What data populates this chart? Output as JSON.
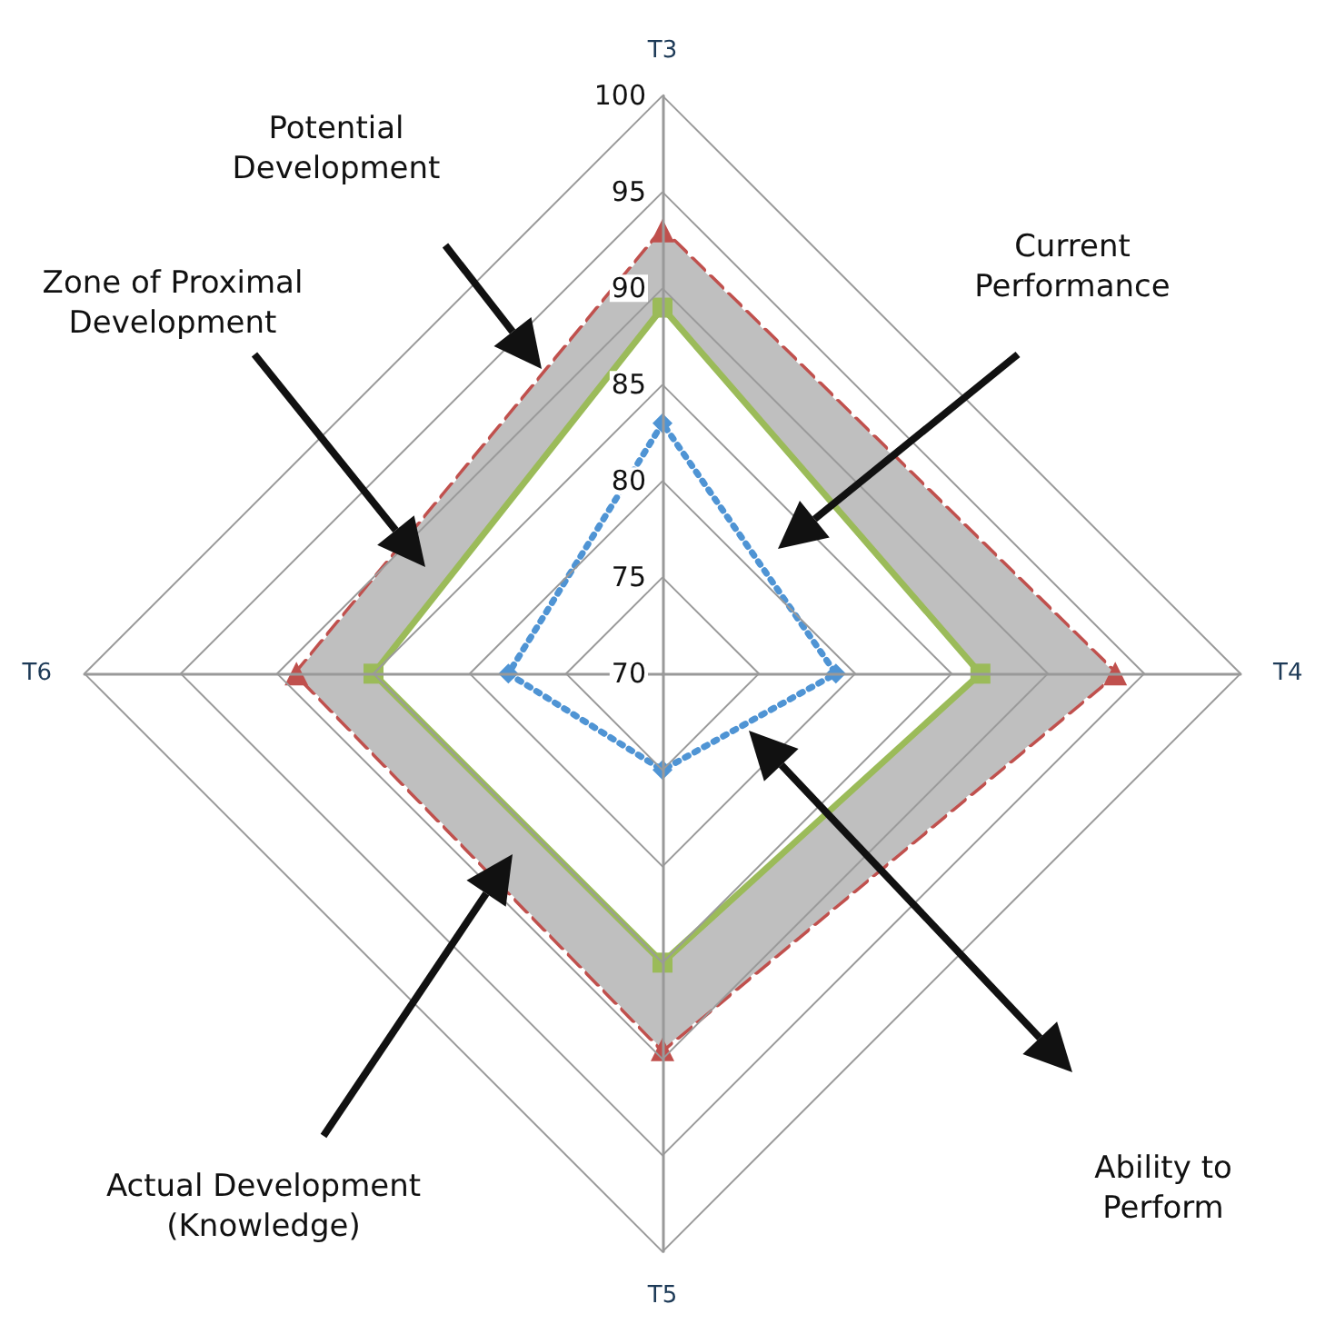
{
  "chart_data": {
    "type": "radar",
    "categories": [
      "T3",
      "T4",
      "T5",
      "T6"
    ],
    "ylim": [
      70,
      100
    ],
    "yticks": [
      70,
      75,
      80,
      85,
      90,
      95,
      100
    ],
    "grid": true,
    "series": [
      {
        "color": "#c0504d",
        "values": [
          93,
          93.5,
          89.5,
          89
        ],
        "marker": "triangle",
        "line_style": "dashed"
      },
      {
        "color": "#9bbb59",
        "values": [
          89,
          86.5,
          85,
          85
        ],
        "marker": "square",
        "line_style": "solid"
      },
      {
        "color": "#4f94d4",
        "values": [
          83,
          79,
          75,
          78
        ],
        "marker": "diamond",
        "line_style": "dotted"
      }
    ],
    "annotations": [
      "Potential Development",
      "Zone of Proximal Development",
      "Current Performance",
      "Ability to Perform",
      "Actual Development (Knowledge)"
    ]
  }
}
